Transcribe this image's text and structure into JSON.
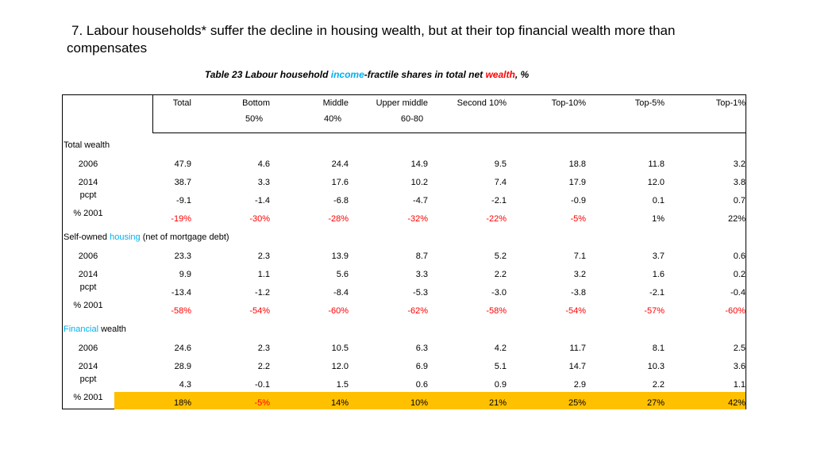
{
  "slide": {
    "heading_line1": "7. Labour households* suffer the decline in housing wealth, but at their top financial wealth more than",
    "heading_line2": "compensates"
  },
  "caption": {
    "part1": "Table 23 Labour household ",
    "income_word": "income",
    "part2": "-fractile shares in total net ",
    "wealth_word": "wealth",
    "part3": ", %"
  },
  "table": {
    "columns": [
      {
        "line1": "Total",
        "line2": ""
      },
      {
        "line1": "Bottom",
        "line2": "50%"
      },
      {
        "line1": "Middle",
        "line2": "40%"
      },
      {
        "line1": "Upper middle",
        "line2": "60-80"
      },
      {
        "line1": "Second 10%",
        "line2": ""
      },
      {
        "line1": "Top-10%",
        "line2": ""
      },
      {
        "line1": "Top-5%",
        "line2": ""
      },
      {
        "line1": "Top-1%",
        "line2": ""
      }
    ],
    "sections": [
      {
        "title_plain": "Total wealth",
        "title_highlight": "",
        "title_rest": "",
        "rows": [
          {
            "label": "2006",
            "values": [
              "47.9",
              "4.6",
              "24.4",
              "14.9",
              "9.5",
              "18.8",
              "11.8",
              "3.2"
            ]
          },
          {
            "label": "2014",
            "values": [
              "38.7",
              "3.3",
              "17.6",
              "10.2",
              "7.4",
              "17.9",
              "12.0",
              "3.8"
            ]
          },
          {
            "label": "pcpt",
            "values": [
              "-9.1",
              "-1.4",
              "-6.8",
              "-4.7",
              "-2.1",
              "-0.9",
              "0.1",
              "0.7"
            ]
          },
          {
            "label": "% 2001",
            "values": [
              "-19%",
              "-30%",
              "-28%",
              "-32%",
              "-22%",
              "-5%",
              "1%",
              "22%"
            ]
          }
        ]
      },
      {
        "title_plain": "Self-owned ",
        "title_highlight": "housing",
        "title_rest": " (net of mortgage debt)",
        "rows": [
          {
            "label": "2006",
            "values": [
              "23.3",
              "2.3",
              "13.9",
              "8.7",
              "5.2",
              "7.1",
              "3.7",
              "0.6"
            ]
          },
          {
            "label": "2014",
            "values": [
              "9.9",
              "1.1",
              "5.6",
              "3.3",
              "2.2",
              "3.2",
              "1.6",
              "0.2"
            ]
          },
          {
            "label": "pcpt",
            "values": [
              "-13.4",
              "-1.2",
              "-8.4",
              "-5.3",
              "-3.0",
              "-3.8",
              "-2.1",
              "-0.4"
            ]
          },
          {
            "label": "% 2001",
            "values": [
              "-58%",
              "-54%",
              "-60%",
              "-62%",
              "-58%",
              "-54%",
              "-57%",
              "-60%"
            ]
          }
        ]
      },
      {
        "title_plain": "",
        "title_highlight": "Financial",
        "title_rest": " wealth",
        "rows": [
          {
            "label": "2006",
            "values": [
              "24.6",
              "2.3",
              "10.5",
              "6.3",
              "4.2",
              "11.7",
              "8.1",
              "2.5"
            ]
          },
          {
            "label": "2014",
            "values": [
              "28.9",
              "2.2",
              "12.0",
              "6.9",
              "5.1",
              "14.7",
              "10.3",
              "3.6"
            ]
          },
          {
            "label": "pcpt",
            "values": [
              "4.3",
              "-0.1",
              "1.5",
              "0.6",
              "0.9",
              "2.9",
              "2.2",
              "1.1"
            ]
          },
          {
            "label": "% 2001",
            "values": [
              "18%",
              "-5%",
              "14%",
              "10%",
              "21%",
              "25%",
              "27%",
              "42%"
            ]
          }
        ]
      }
    ],
    "colors": {
      "highlight_text": "#00B0F0",
      "negative_pct": "#FF0000",
      "fill_highlight": "#FFC000"
    }
  }
}
